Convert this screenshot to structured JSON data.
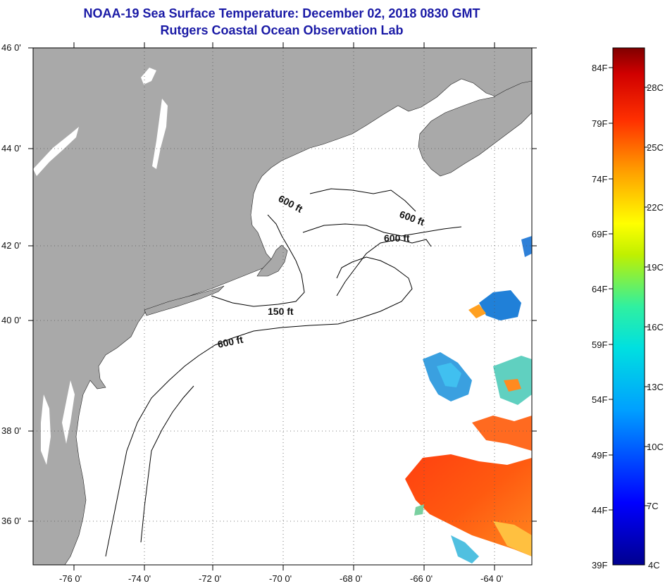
{
  "title": "NOAA-19 Sea Surface Temperature:  December 02, 2018 0830 GMT",
  "subtitle": "Rutgers Coastal Ocean Observation Lab",
  "lat_labels": [
    "46 0'",
    "44 0'",
    "42 0'",
    "40 0'",
    "38 0'",
    "36 0'"
  ],
  "lon_labels": [
    "-76 0'",
    "-74 0'",
    "-72 0'",
    "-70 0'",
    "-68 0'",
    "-66 0'",
    "-64 0'"
  ],
  "contour_labels": [
    "600 ft",
    "600 ft",
    "600 ft",
    "150 ft",
    "600 ft"
  ],
  "colorbar": {
    "f_labels": [
      "84F",
      "79F",
      "74F",
      "69F",
      "64F",
      "59F",
      "54F",
      "49F",
      "44F",
      "39F"
    ],
    "c_labels": [
      "28C",
      "25C",
      "22C",
      "19C",
      "16C",
      "13C",
      "10C",
      "7C",
      "4C"
    ]
  },
  "colors": {
    "title": "#1a1aa6",
    "land": "#a9a9a9",
    "ocean": "#ffffff",
    "contour": "#000000"
  }
}
